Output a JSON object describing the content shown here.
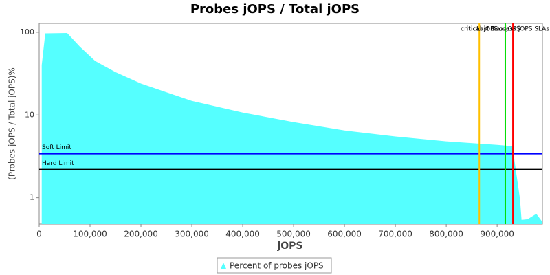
{
  "chart_data": {
    "type": "area",
    "title": "Probes jOPS / Total jOPS",
    "x_label": "jOPS",
    "y_label": "(Probes jOPS / Total jOPS)%",
    "x": [
      5000,
      12000,
      55000,
      80000,
      110000,
      150000,
      200000,
      300000,
      400000,
      500000,
      600000,
      700000,
      800000,
      900000,
      930000,
      945000,
      948000,
      960000,
      977000,
      989000
    ],
    "series": [
      {
        "name": "Percent of probes jOPS",
        "color": "#55ffff",
        "values": [
          40,
          97,
          98,
          67,
          45,
          33,
          24,
          14.8,
          10.7,
          8.2,
          6.5,
          5.5,
          4.8,
          4.35,
          4.2,
          0.96,
          0.54,
          0.55,
          0.64,
          0.51
        ]
      }
    ],
    "xlim": [
      0,
      989000
    ],
    "xticks": [
      0,
      {
        "value": 100000,
        "label": "100,000"
      },
      {
        "value": 200000,
        "label": "200,000"
      },
      {
        "value": 300000,
        "label": "300,000"
      },
      {
        "value": 400000,
        "label": "400,000"
      },
      {
        "value": 500000,
        "label": "500,000"
      },
      {
        "value": 600000,
        "label": "600,000"
      },
      {
        "value": 700000,
        "label": "700,000"
      },
      {
        "value": 800000,
        "label": "800,000"
      },
      {
        "value": 900000,
        "label": "900,000"
      }
    ],
    "ylim": [
      0.48,
      128
    ],
    "yticks": [
      1,
      10,
      100
    ],
    "log_scale": true,
    "hlines": [
      {
        "label": "Soft Limit",
        "value": 3.4,
        "color": "#0000ff"
      },
      {
        "label": "Hard Limit",
        "value": 2.19,
        "color": "#000000"
      }
    ],
    "vlines": [
      {
        "label": "critical-jOPS",
        "value": 865000,
        "color": "#ffc000"
      },
      {
        "label": "max-jOPS",
        "value": 916000,
        "color": "#00dd00"
      },
      {
        "label": "Last Success jOPS SLAs",
        "value": 931000,
        "color": "#ff0000"
      }
    ]
  }
}
